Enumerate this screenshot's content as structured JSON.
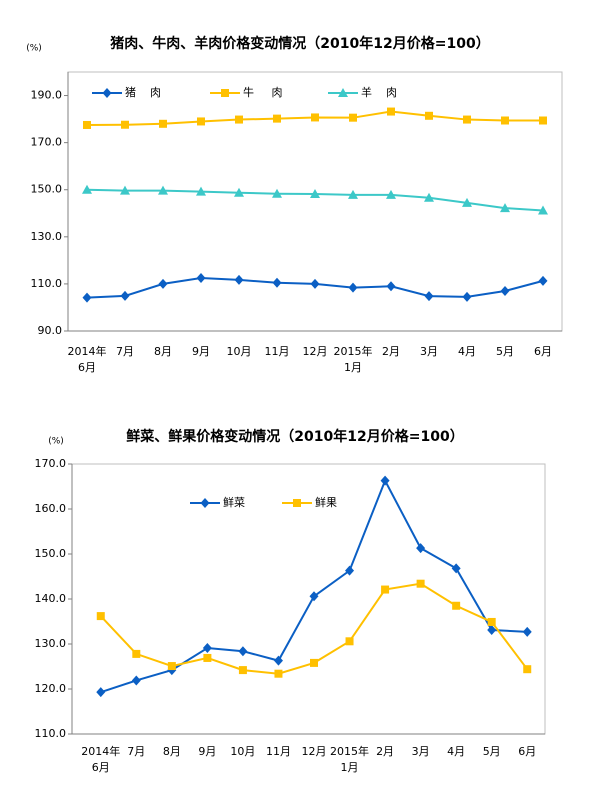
{
  "chart_data": [
    {
      "type": "line",
      "title": "猪肉、牛肉、羊肉价格变动情况（2010年12月价格=100）",
      "y_label": "(%)",
      "categories": [
        "2014年\n6月",
        "7月",
        "8月",
        "9月",
        "10月",
        "11月",
        "12月",
        "2015年\n1月",
        "2月",
        "3月",
        "4月",
        "5月",
        "6月"
      ],
      "series": [
        {
          "name": "猪    肉",
          "color": "#0b5fc4",
          "marker": "diamond",
          "values": [
            104.2,
            104.9,
            110,
            112.5,
            111.7,
            110.5,
            110,
            108.4,
            109,
            104.8,
            104.5,
            107,
            111.3
          ]
        },
        {
          "name": "牛     肉",
          "color": "#ffc000",
          "marker": "square",
          "values": [
            177.5,
            177.6,
            178,
            179,
            179.8,
            180.2,
            180.7,
            180.6,
            183.2,
            181.4,
            179.8,
            179.4,
            179.4
          ]
        },
        {
          "name": "羊    肉",
          "color": "#3cc8c8",
          "marker": "triangle",
          "values": [
            150,
            149.6,
            149.6,
            149.2,
            148.7,
            148.3,
            148.2,
            147.8,
            147.8,
            146.6,
            144.4,
            142.2,
            141.2
          ]
        }
      ],
      "ylim": [
        90,
        200
      ],
      "yticks": [
        {
          "value": 90,
          "label": "90.0"
        },
        {
          "value": 110,
          "label": "110.0"
        },
        {
          "value": 130,
          "label": "130.0"
        },
        {
          "value": 150,
          "label": "150.0"
        },
        {
          "value": 170,
          "label": "170.0"
        },
        {
          "value": 190,
          "label": "190.0"
        }
      ],
      "legend": "upper left"
    },
    {
      "type": "line",
      "title": "鲜菜、鲜果价格变动情况（2010年12月价格=100）",
      "y_label": "(%)",
      "categories": [
        "2014年\n6月",
        "7月",
        "8月",
        "9月",
        "10月",
        "11月",
        "12月",
        "2015年\n1月",
        "2月",
        "3月",
        "4月",
        "5月",
        "6月"
      ],
      "series": [
        {
          "name": "鲜菜",
          "color": "#0b5fc4",
          "marker": "diamond",
          "values": [
            119.3,
            121.9,
            124.2,
            129.1,
            128.4,
            126.3,
            140.6,
            146.3,
            166.3,
            151.3,
            146.8,
            133.1,
            132.7
          ]
        },
        {
          "name": "鲜果",
          "color": "#ffc000",
          "marker": "square",
          "values": [
            136.2,
            127.8,
            125.1,
            126.9,
            124.2,
            123.4,
            125.8,
            130.6,
            142.1,
            143.4,
            138.5,
            134.9,
            124.4
          ]
        }
      ],
      "ylim": [
        110,
        170
      ],
      "yticks": [
        {
          "value": 110,
          "label": "110.0"
        },
        {
          "value": 120,
          "label": "120.0"
        },
        {
          "value": 130,
          "label": "130.0"
        },
        {
          "value": 140,
          "label": "140.0"
        },
        {
          "value": 150,
          "label": "150.0"
        },
        {
          "value": 160,
          "label": "160.0"
        },
        {
          "value": 170,
          "label": "170.0"
        }
      ],
      "legend": "upper left"
    }
  ]
}
